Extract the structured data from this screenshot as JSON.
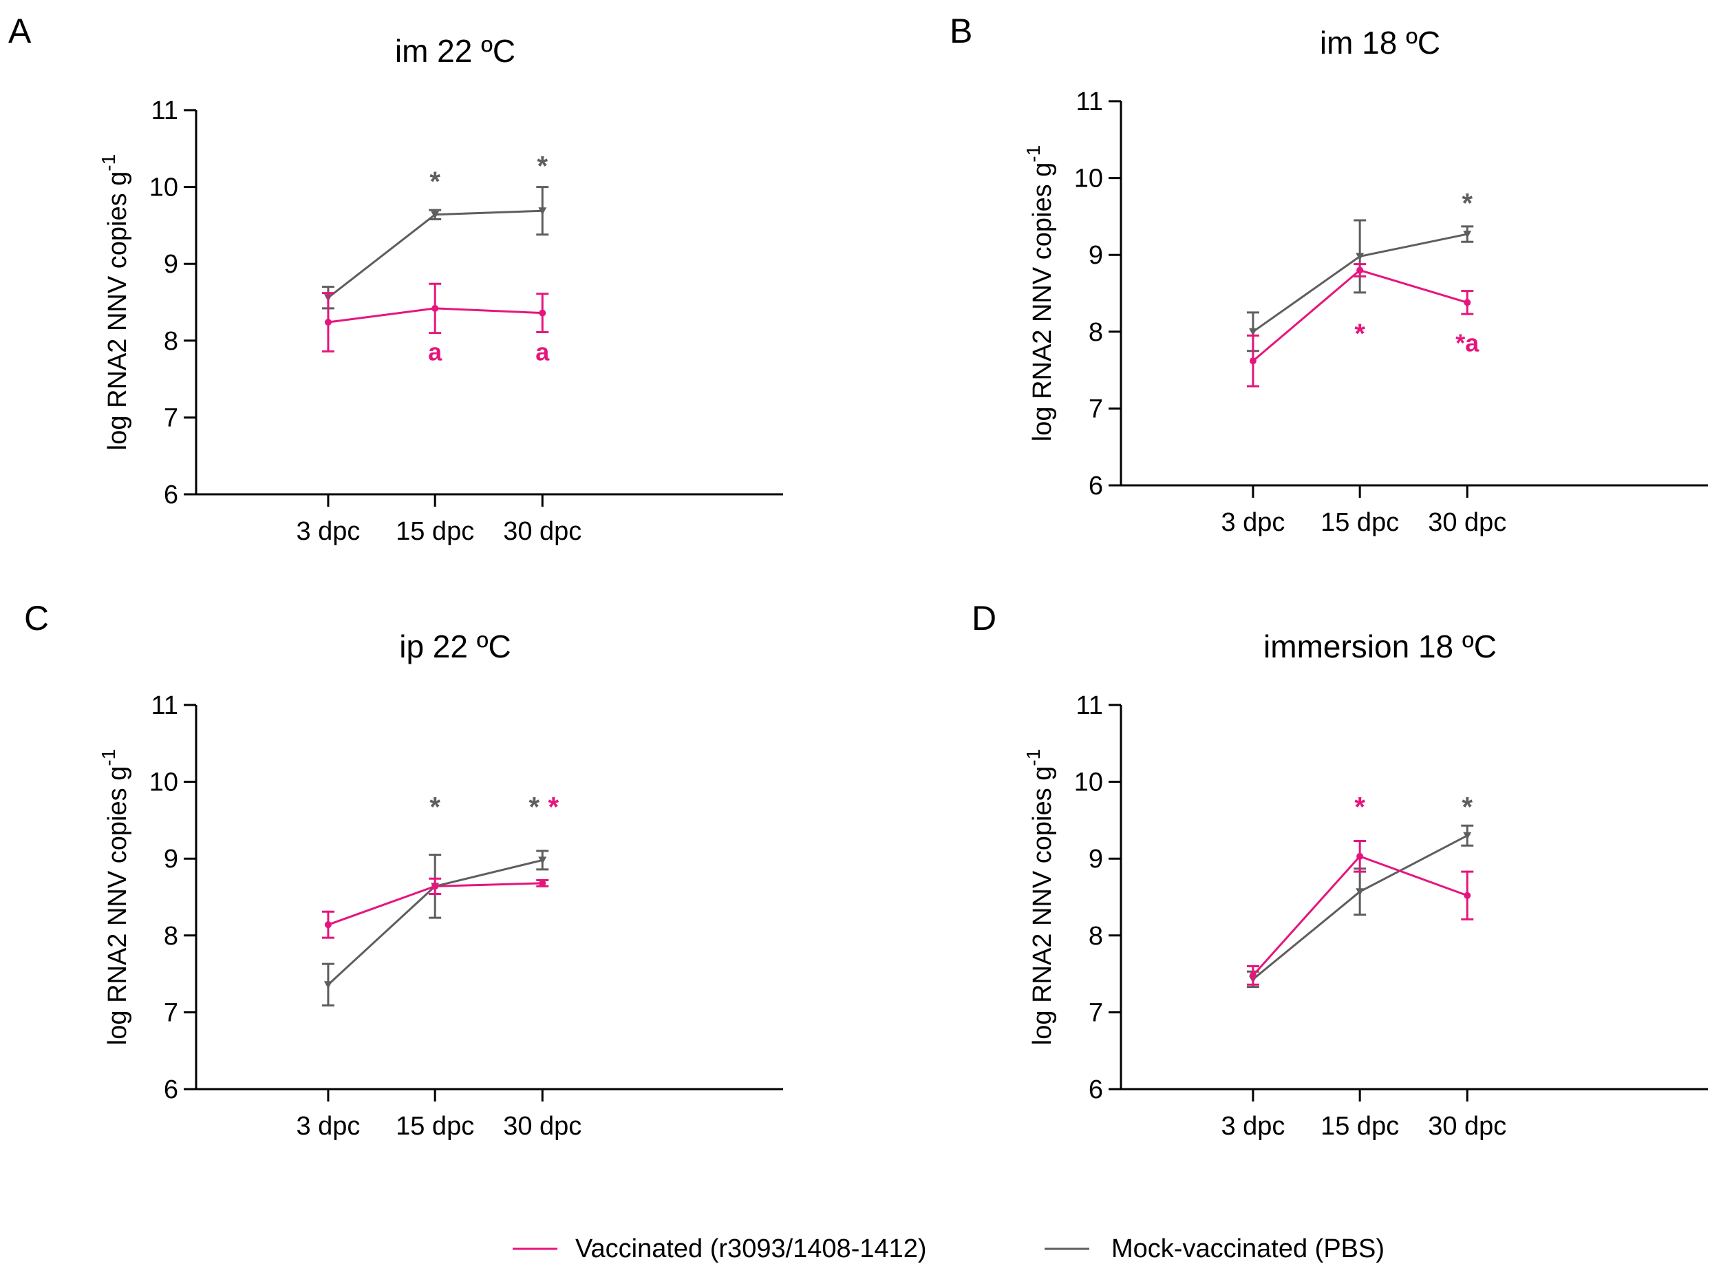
{
  "colors": {
    "vaccinated": "#E6157D",
    "mock": "#5E5E5E",
    "axis": "#000000"
  },
  "legend": {
    "vaccinated_label": "Vaccinated (r3093/1408-1412)",
    "mock_label": "Mock-vaccinated (PBS)"
  },
  "chart_data": [
    {
      "panel": "A",
      "title": "im 22 ºC",
      "type": "line",
      "ylabel": "log RNA2 NNV copies g",
      "ylabel_sup": "-1",
      "ylim": [
        6,
        11
      ],
      "yticks": [
        6,
        7,
        8,
        9,
        10,
        11
      ],
      "categories": [
        "3 dpc",
        "15 dpc",
        "30 dpc"
      ],
      "series": [
        {
          "name": "Vaccinated (r3093/1408-1412)",
          "key": "vaccinated",
          "marker": "circle",
          "values": [
            8.24,
            8.42,
            8.36
          ],
          "errors": [
            0.38,
            0.32,
            0.25
          ]
        },
        {
          "name": "Mock-vaccinated (PBS)",
          "key": "mock",
          "marker": "triangle-down",
          "values": [
            8.56,
            9.64,
            9.69
          ],
          "errors": [
            0.14,
            0.06,
            0.31
          ]
        }
      ],
      "annotations": [
        {
          "text": "*",
          "cat": 1,
          "y": 10.15,
          "series": "mock"
        },
        {
          "text": "*",
          "cat": 2,
          "y": 10.35,
          "series": "mock"
        },
        {
          "text": "a",
          "cat": 1,
          "y": 7.85,
          "series": "vaccinated"
        },
        {
          "text": "a",
          "cat": 2,
          "y": 7.85,
          "series": "vaccinated"
        }
      ]
    },
    {
      "panel": "B",
      "title": "im 18 ºC",
      "type": "line",
      "ylabel": "log RNA2 NNV copies g",
      "ylabel_sup": "-1",
      "ylim": [
        6,
        11
      ],
      "yticks": [
        6,
        7,
        8,
        9,
        10,
        11
      ],
      "categories": [
        "3 dpc",
        "15 dpc",
        "30 dpc"
      ],
      "series": [
        {
          "name": "Vaccinated (r3093/1408-1412)",
          "key": "vaccinated",
          "marker": "circle",
          "values": [
            7.62,
            8.8,
            8.38
          ],
          "errors": [
            0.33,
            0.08,
            0.15
          ]
        },
        {
          "name": "Mock-vaccinated (PBS)",
          "key": "mock",
          "marker": "triangle-down",
          "values": [
            8.0,
            8.98,
            9.27
          ],
          "errors": [
            0.25,
            0.47,
            0.1
          ]
        }
      ],
      "annotations": [
        {
          "text": "*",
          "cat": 2,
          "y": 9.75,
          "series": "mock"
        },
        {
          "text": "*",
          "cat": 1,
          "y": 8.05,
          "series": "vaccinated"
        },
        {
          "text": "*a",
          "cat": 2,
          "y": 7.85,
          "series": "vaccinated"
        }
      ]
    },
    {
      "panel": "C",
      "title": "ip 22 ºC",
      "type": "line",
      "ylabel": "log RNA2 NNV copies g",
      "ylabel_sup": "-1",
      "ylim": [
        6,
        11
      ],
      "yticks": [
        6,
        7,
        8,
        9,
        10,
        11
      ],
      "categories": [
        "3 dpc",
        "15 dpc",
        "30 dpc"
      ],
      "series": [
        {
          "name": "Vaccinated (r3093/1408-1412)",
          "key": "vaccinated",
          "marker": "circle",
          "values": [
            8.14,
            8.64,
            8.68
          ],
          "errors": [
            0.17,
            0.1,
            0.04
          ]
        },
        {
          "name": "Mock-vaccinated (PBS)",
          "key": "mock",
          "marker": "triangle-down",
          "values": [
            7.36,
            8.64,
            8.98
          ],
          "errors": [
            0.27,
            0.41,
            0.12
          ]
        }
      ],
      "annotations": [
        {
          "text": "*",
          "cat": 1,
          "y": 9.75,
          "series": "mock"
        },
        {
          "text": "*",
          "cat": 2,
          "dx": -12,
          "y": 9.75,
          "series": "mock"
        },
        {
          "text": "*",
          "cat": 2,
          "dx": 16,
          "y": 9.75,
          "series": "vaccinated"
        }
      ]
    },
    {
      "panel": "D",
      "title": "immersion 18 ºC",
      "type": "line",
      "ylabel": "log RNA2 NNV copies g",
      "ylabel_sup": "-1",
      "ylim": [
        6,
        11
      ],
      "yticks": [
        6,
        7,
        8,
        9,
        10,
        11
      ],
      "categories": [
        "3 dpc",
        "15 dpc",
        "30 dpc"
      ],
      "series": [
        {
          "name": "Vaccinated (r3093/1408-1412)",
          "key": "vaccinated",
          "marker": "circle",
          "values": [
            7.48,
            9.03,
            8.52
          ],
          "errors": [
            0.12,
            0.2,
            0.31
          ]
        },
        {
          "name": "Mock-vaccinated (PBS)",
          "key": "mock",
          "marker": "triangle-down",
          "values": [
            7.43,
            8.57,
            9.3
          ],
          "errors": [
            0.1,
            0.3,
            0.13
          ]
        }
      ],
      "annotations": [
        {
          "text": "*",
          "cat": 1,
          "y": 9.75,
          "series": "vaccinated"
        },
        {
          "text": "*",
          "cat": 2,
          "y": 9.75,
          "series": "mock"
        }
      ]
    }
  ]
}
